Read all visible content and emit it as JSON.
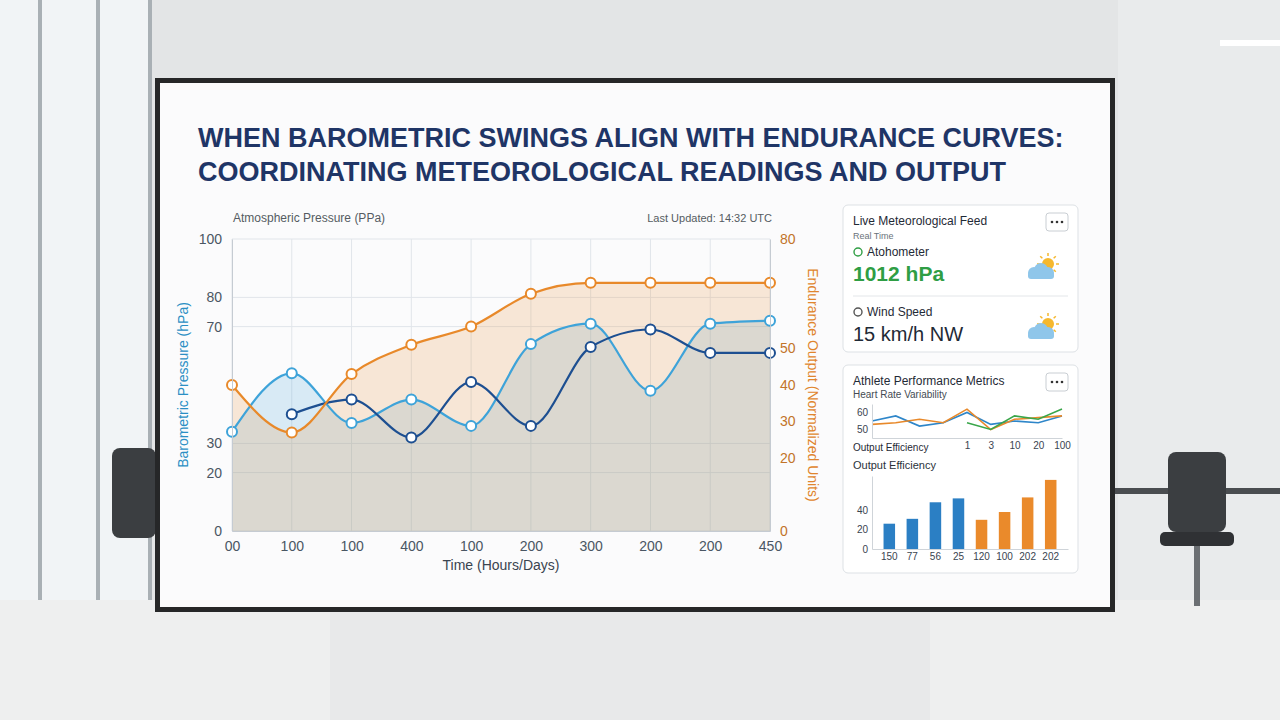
{
  "chart_data": [
    {
      "type": "line",
      "title": "WHEN BAROMETRIC SWINGS ALIGN WITH ENDURANCE CURVES: COORDINATING METEOROLOGICAL READINGS AND OUTPUT",
      "subtitle": "Atmospheric Pressure (PPa)",
      "annotations": [
        "Last Updated: 14:32 UTC"
      ],
      "x_label": "Time (Hours/Days)",
      "y_label": "Barometric Pressure (hPa)",
      "y2_label": "Endurance Output (Normalized Units)",
      "categories": [
        "00",
        "100",
        "100",
        "400",
        "100",
        "200",
        "300",
        "200",
        "200",
        "450"
      ],
      "ylim": [
        0,
        100
      ],
      "yticks": [
        0,
        20,
        30,
        70,
        80,
        100
      ],
      "y2lim": [
        0,
        80
      ],
      "y2ticks": [
        0,
        20,
        30,
        40,
        50,
        80
      ],
      "grid": true,
      "series": [
        {
          "type": "area",
          "color": "#3ea3d9",
          "marker": "circle",
          "values": [
            34,
            54,
            37,
            45,
            36,
            64,
            71,
            48,
            71,
            72
          ]
        },
        {
          "type": "line",
          "color": "#1d4f91",
          "marker": "circle",
          "values": [
            null,
            40,
            45,
            32,
            51,
            36,
            63,
            69,
            61,
            61
          ]
        },
        {
          "type": "area",
          "color": "#e8892a",
          "marker": "circle",
          "axis": "y2",
          "values": [
            40,
            27,
            43,
            51,
            56,
            65,
            68,
            68,
            68,
            68
          ]
        }
      ]
    },
    {
      "type": "line",
      "title": "Heart Rate Variability",
      "x_label": "Output Efficiency",
      "categories": [
        null,
        null,
        null,
        null,
        "1",
        "3",
        "10",
        "20",
        "100"
      ],
      "ylim": [
        45,
        65
      ],
      "yticks": [
        50,
        60
      ],
      "series": [
        {
          "color": "#2e86c9",
          "values": [
            55,
            58,
            52,
            54,
            60,
            53,
            55,
            54,
            58
          ]
        },
        {
          "color": "#e8892a",
          "values": [
            53,
            54,
            56,
            54,
            62,
            50,
            56,
            57,
            58
          ]
        },
        {
          "color": "#3aa64a",
          "values": [
            null,
            null,
            null,
            null,
            54,
            50,
            58,
            56,
            62
          ]
        }
      ]
    },
    {
      "type": "bar",
      "title": "Output Efficiency",
      "categories": [
        "150",
        "77",
        "56",
        "25",
        "120",
        "100",
        "202",
        "202"
      ],
      "values": [
        26,
        31,
        48,
        52,
        30,
        38,
        53,
        71
      ],
      "colors": [
        "#2b7fc4",
        "#2b7fc4",
        "#2b7fc4",
        "#2b7fc4",
        "#ea8a2b",
        "#ea8a2b",
        "#ea8a2b",
        "#ea8a2b"
      ],
      "ylim": [
        0,
        75
      ],
      "yticks": [
        0,
        20,
        40
      ]
    }
  ],
  "panels": {
    "meteo": {
      "title": "Live Meteorological Feed",
      "subtitle": "Real Time",
      "readings": [
        {
          "label": "Atohometer",
          "value": "1012 hPa"
        },
        {
          "label": "Wind Speed",
          "value": "15 km/h NW"
        }
      ]
    },
    "athlete": {
      "title": "Athlete Performance Metrics"
    }
  }
}
